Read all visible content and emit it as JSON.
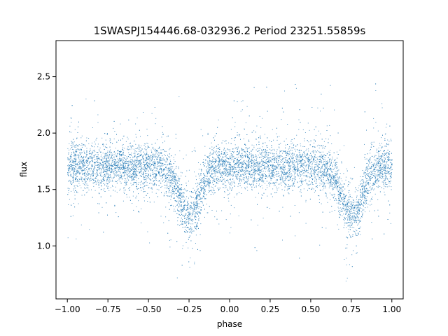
{
  "chart_data": {
    "type": "scatter",
    "title": "1SWASPJ154446.68-032936.2 Period 23251.55859s",
    "xlabel": "phase",
    "ylabel": "flux",
    "xlim": [
      -1.07,
      1.07
    ],
    "ylim": [
      0.53,
      2.82
    ],
    "x_ticks": [
      -1.0,
      -0.75,
      -0.5,
      -0.25,
      0.0,
      0.25,
      0.5,
      0.75,
      1.0
    ],
    "x_tick_labels": [
      "−1.00",
      "−0.75",
      "−0.50",
      "−0.25",
      "0.00",
      "0.25",
      "0.50",
      "0.75",
      "1.00"
    ],
    "y_ticks": [
      1.0,
      1.5,
      2.0,
      2.5
    ],
    "y_tick_labels": [
      "1.0",
      "1.5",
      "2.0",
      "2.5"
    ],
    "grid": false,
    "marker_color": "#1f77b4",
    "phase_range": [
      -1.0,
      1.0
    ],
    "baseline_flux": 1.71,
    "eclipses": [
      {
        "phase_center": -0.25,
        "min_flux": 1.27
      },
      {
        "phase_center": 0.75,
        "min_flux": 1.27
      }
    ]
  }
}
